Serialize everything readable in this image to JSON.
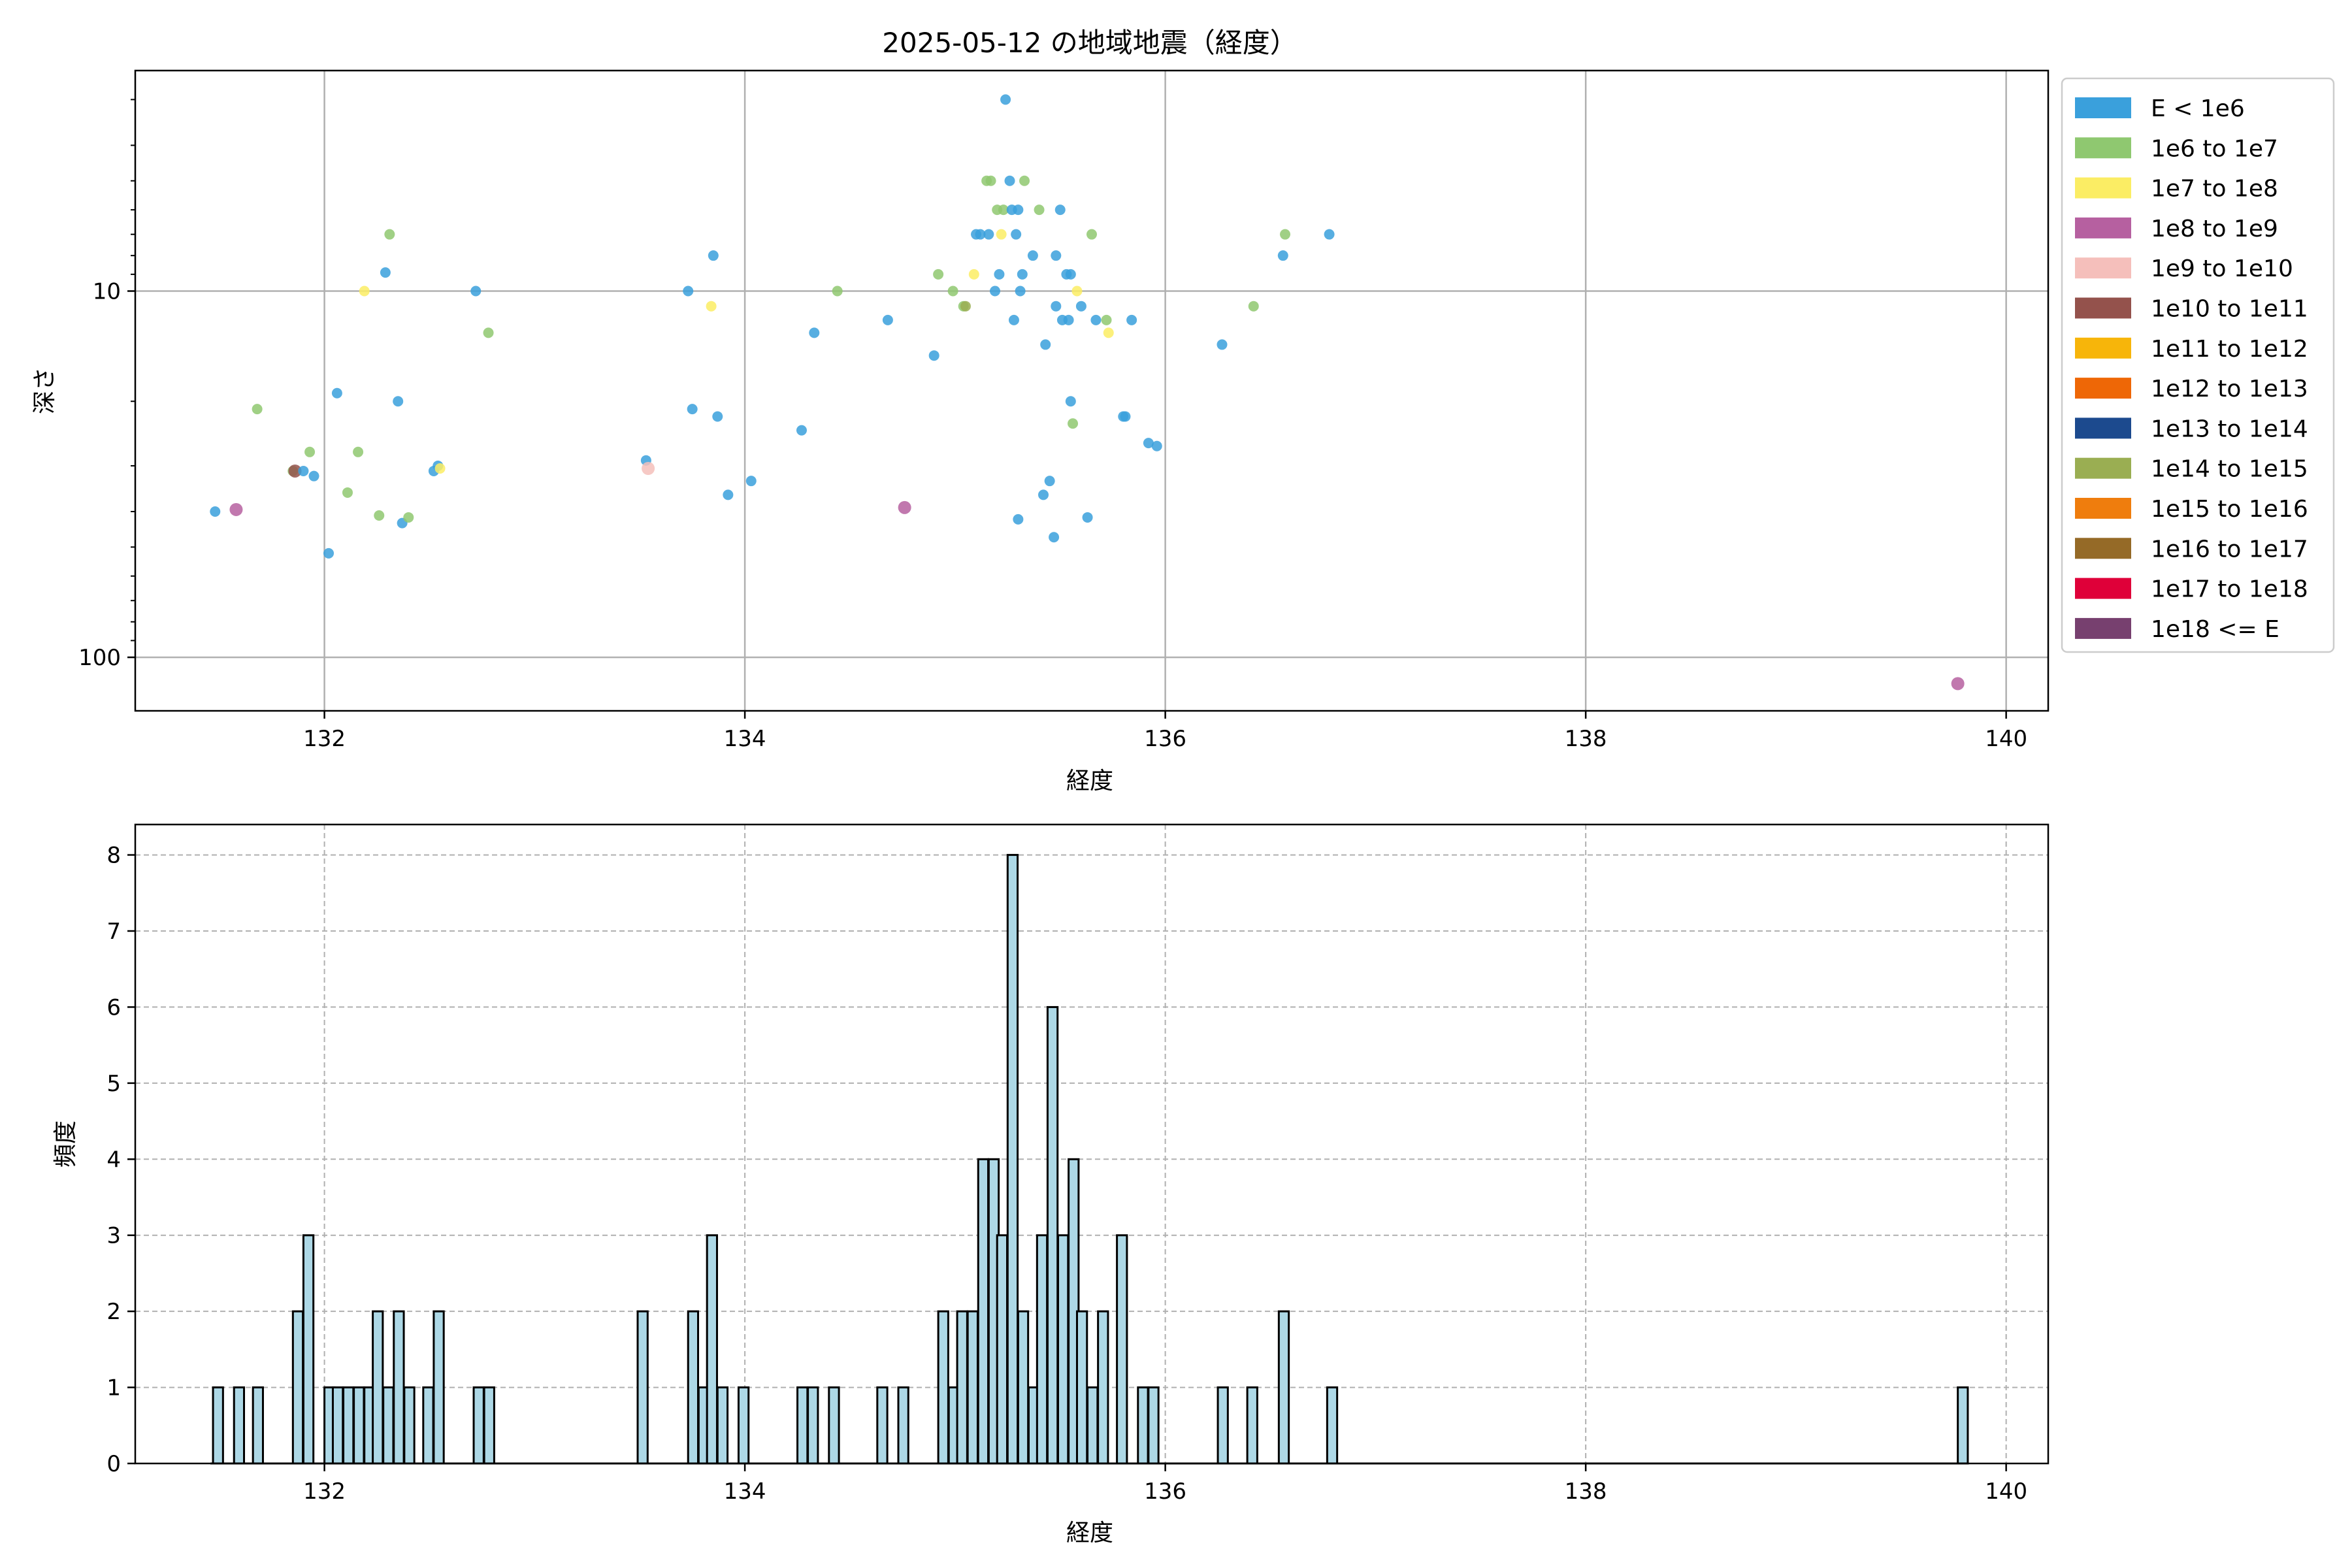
{
  "chart_data": [
    {
      "type": "scatter",
      "title": "2025-05-12 の地域地震（経度）",
      "xlabel": "経度",
      "ylabel": "深さ",
      "xlim": [
        131.1,
        140.2
      ],
      "ylim": [
        140,
        2.5
      ],
      "yscale": "log",
      "y_inverted": true,
      "grid": true,
      "xticks": [
        132,
        134,
        136,
        138,
        140
      ],
      "xtick_labels": [
        "132",
        "134",
        "136",
        "138",
        "140"
      ],
      "yticks": [
        10,
        100
      ],
      "ytick_labels": [
        "10",
        "100"
      ],
      "legend_position": "outside-right",
      "legend": [
        {
          "label": "E < 1e6",
          "color": "#3aa0dc"
        },
        {
          "label": "1e6 to 1e7",
          "color": "#8fc870"
        },
        {
          "label": "1e7 to 1e8",
          "color": "#fbed64"
        },
        {
          "label": "1e8 to 1e9",
          "color": "#b660a0"
        },
        {
          "label": "1e9 to 1e10",
          "color": "#f5bfbb"
        },
        {
          "label": "1e10 to 1e11",
          "color": "#94524c"
        },
        {
          "label": "1e11 to 1e12",
          "color": "#f7b50a"
        },
        {
          "label": "1e12 to 1e13",
          "color": "#ee6706"
        },
        {
          "label": "1e13 to 1e14",
          "color": "#1c4a8e"
        },
        {
          "label": "1e14 to 1e15",
          "color": "#9aae52"
        },
        {
          "label": "1e15 to 1e16",
          "color": "#ef7d0d"
        },
        {
          "label": "1e16 to 1e17",
          "color": "#956a27"
        },
        {
          "label": "1e17 to 1e18",
          "color": "#df0039"
        },
        {
          "label": "1e18 <= E",
          "color": "#77406f"
        }
      ],
      "points": [
        {
          "x": 131.48,
          "y": 40,
          "c": 0
        },
        {
          "x": 131.58,
          "y": 39.5,
          "c": 3
        },
        {
          "x": 131.68,
          "y": 21,
          "c": 1
        },
        {
          "x": 131.85,
          "y": 31,
          "c": 1
        },
        {
          "x": 131.86,
          "y": 31,
          "c": 5
        },
        {
          "x": 131.9,
          "y": 31,
          "c": 0
        },
        {
          "x": 131.93,
          "y": 27.5,
          "c": 1
        },
        {
          "x": 131.95,
          "y": 32,
          "c": 0
        },
        {
          "x": 132.02,
          "y": 52,
          "c": 0
        },
        {
          "x": 132.06,
          "y": 19,
          "c": 0
        },
        {
          "x": 132.11,
          "y": 35.5,
          "c": 1
        },
        {
          "x": 132.16,
          "y": 27.5,
          "c": 1
        },
        {
          "x": 132.19,
          "y": 10,
          "c": 2
        },
        {
          "x": 132.26,
          "y": 41,
          "c": 1
        },
        {
          "x": 132.29,
          "y": 8.9,
          "c": 0
        },
        {
          "x": 132.31,
          "y": 7,
          "c": 1
        },
        {
          "x": 132.35,
          "y": 20,
          "c": 0
        },
        {
          "x": 132.37,
          "y": 43,
          "c": 0
        },
        {
          "x": 132.4,
          "y": 41.5,
          "c": 1
        },
        {
          "x": 132.52,
          "y": 31,
          "c": 0
        },
        {
          "x": 132.54,
          "y": 30,
          "c": 0
        },
        {
          "x": 132.55,
          "y": 30.5,
          "c": 2
        },
        {
          "x": 132.72,
          "y": 10,
          "c": 0
        },
        {
          "x": 132.78,
          "y": 13,
          "c": 1
        },
        {
          "x": 133.53,
          "y": 29,
          "c": 0
        },
        {
          "x": 133.54,
          "y": 30.5,
          "c": 4
        },
        {
          "x": 133.73,
          "y": 10,
          "c": 0
        },
        {
          "x": 133.75,
          "y": 21,
          "c": 0
        },
        {
          "x": 133.84,
          "y": 11,
          "c": 2
        },
        {
          "x": 133.85,
          "y": 8,
          "c": 0
        },
        {
          "x": 133.87,
          "y": 22,
          "c": 0
        },
        {
          "x": 133.92,
          "y": 36,
          "c": 0
        },
        {
          "x": 134.03,
          "y": 33,
          "c": 0
        },
        {
          "x": 134.27,
          "y": 24,
          "c": 0
        },
        {
          "x": 134.33,
          "y": 13,
          "c": 0
        },
        {
          "x": 134.44,
          "y": 10,
          "c": 1
        },
        {
          "x": 134.68,
          "y": 12,
          "c": 0
        },
        {
          "x": 134.76,
          "y": 39,
          "c": 3
        },
        {
          "x": 134.9,
          "y": 15,
          "c": 0
        },
        {
          "x": 134.92,
          "y": 9,
          "c": 1
        },
        {
          "x": 134.99,
          "y": 10,
          "c": 1
        },
        {
          "x": 135.04,
          "y": 11,
          "c": 1
        },
        {
          "x": 135.05,
          "y": 11,
          "c": 9
        },
        {
          "x": 135.09,
          "y": 9,
          "c": 2
        },
        {
          "x": 135.1,
          "y": 7,
          "c": 0
        },
        {
          "x": 135.12,
          "y": 7,
          "c": 0
        },
        {
          "x": 135.15,
          "y": 5,
          "c": 1
        },
        {
          "x": 135.17,
          "y": 5,
          "c": 1
        },
        {
          "x": 135.16,
          "y": 7,
          "c": 0
        },
        {
          "x": 135.19,
          "y": 10,
          "c": 0
        },
        {
          "x": 135.2,
          "y": 6,
          "c": 1
        },
        {
          "x": 135.21,
          "y": 9,
          "c": 0
        },
        {
          "x": 135.22,
          "y": 7,
          "c": 2
        },
        {
          "x": 135.23,
          "y": 6,
          "c": 1
        },
        {
          "x": 135.24,
          "y": 3,
          "c": 0
        },
        {
          "x": 135.26,
          "y": 5,
          "c": 0
        },
        {
          "x": 135.27,
          "y": 6,
          "c": 0
        },
        {
          "x": 135.28,
          "y": 12,
          "c": 0
        },
        {
          "x": 135.29,
          "y": 7,
          "c": 0
        },
        {
          "x": 135.3,
          "y": 6,
          "c": 0
        },
        {
          "x": 135.31,
          "y": 10,
          "c": 0
        },
        {
          "x": 135.32,
          "y": 9,
          "c": 0
        },
        {
          "x": 135.33,
          "y": 5,
          "c": 1
        },
        {
          "x": 135.3,
          "y": 42,
          "c": 0
        },
        {
          "x": 135.37,
          "y": 8,
          "c": 0
        },
        {
          "x": 135.4,
          "y": 6,
          "c": 1
        },
        {
          "x": 135.42,
          "y": 36,
          "c": 0
        },
        {
          "x": 135.43,
          "y": 14,
          "c": 0
        },
        {
          "x": 135.45,
          "y": 33,
          "c": 0
        },
        {
          "x": 135.47,
          "y": 47,
          "c": 0
        },
        {
          "x": 135.48,
          "y": 8,
          "c": 0
        },
        {
          "x": 135.48,
          "y": 11,
          "c": 0
        },
        {
          "x": 135.5,
          "y": 6,
          "c": 0
        },
        {
          "x": 135.51,
          "y": 12,
          "c": 0
        },
        {
          "x": 135.53,
          "y": 9,
          "c": 0
        },
        {
          "x": 135.54,
          "y": 12,
          "c": 0
        },
        {
          "x": 135.55,
          "y": 9,
          "c": 0
        },
        {
          "x": 135.55,
          "y": 20,
          "c": 0
        },
        {
          "x": 135.56,
          "y": 23,
          "c": 1
        },
        {
          "x": 135.58,
          "y": 10,
          "c": 2
        },
        {
          "x": 135.6,
          "y": 11,
          "c": 0
        },
        {
          "x": 135.63,
          "y": 41.5,
          "c": 0
        },
        {
          "x": 135.65,
          "y": 7,
          "c": 1
        },
        {
          "x": 135.67,
          "y": 12,
          "c": 0
        },
        {
          "x": 135.72,
          "y": 12,
          "c": 1
        },
        {
          "x": 135.73,
          "y": 13,
          "c": 2
        },
        {
          "x": 135.8,
          "y": 22,
          "c": 0
        },
        {
          "x": 135.81,
          "y": 22,
          "c": 0
        },
        {
          "x": 135.84,
          "y": 12,
          "c": 0
        },
        {
          "x": 135.92,
          "y": 26,
          "c": 0
        },
        {
          "x": 135.96,
          "y": 26.5,
          "c": 0
        },
        {
          "x": 136.27,
          "y": 14,
          "c": 0
        },
        {
          "x": 136.42,
          "y": 11,
          "c": 1
        },
        {
          "x": 136.56,
          "y": 8,
          "c": 0
        },
        {
          "x": 136.57,
          "y": 7,
          "c": 1
        },
        {
          "x": 136.78,
          "y": 7,
          "c": 0
        },
        {
          "x": 139.77,
          "y": 118,
          "c": 3
        }
      ]
    },
    {
      "type": "bar",
      "title": "",
      "xlabel": "経度",
      "ylabel": "頻度",
      "xlim": [
        131.1,
        140.2
      ],
      "ylim": [
        0,
        8.4
      ],
      "grid": true,
      "grid_style": "dashed",
      "xticks": [
        132,
        134,
        136,
        138,
        140
      ],
      "xtick_labels": [
        "132",
        "134",
        "136",
        "138",
        "140"
      ],
      "yticks": [
        0,
        1,
        2,
        3,
        4,
        5,
        6,
        7,
        8
      ],
      "ytick_labels": [
        "0",
        "1",
        "2",
        "3",
        "4",
        "5",
        "6",
        "7",
        "8"
      ],
      "bar_color": "#add8e6",
      "edge_color": "#000000",
      "bin_width": 0.0475,
      "bins": [
        {
          "x": 131.47,
          "count": 1
        },
        {
          "x": 131.57,
          "count": 1
        },
        {
          "x": 131.66,
          "count": 1
        },
        {
          "x": 131.85,
          "count": 2
        },
        {
          "x": 131.9,
          "count": 3
        },
        {
          "x": 132.0,
          "count": 1
        },
        {
          "x": 132.04,
          "count": 1
        },
        {
          "x": 132.09,
          "count": 1
        },
        {
          "x": 132.14,
          "count": 1
        },
        {
          "x": 132.19,
          "count": 1
        },
        {
          "x": 132.23,
          "count": 2
        },
        {
          "x": 132.28,
          "count": 1
        },
        {
          "x": 132.33,
          "count": 2
        },
        {
          "x": 132.38,
          "count": 1
        },
        {
          "x": 132.47,
          "count": 1
        },
        {
          "x": 132.52,
          "count": 2
        },
        {
          "x": 132.71,
          "count": 1
        },
        {
          "x": 132.76,
          "count": 1
        },
        {
          "x": 133.49,
          "count": 2
        },
        {
          "x": 133.73,
          "count": 2
        },
        {
          "x": 133.78,
          "count": 1
        },
        {
          "x": 133.82,
          "count": 3
        },
        {
          "x": 133.87,
          "count": 1
        },
        {
          "x": 133.97,
          "count": 1
        },
        {
          "x": 134.25,
          "count": 1
        },
        {
          "x": 134.3,
          "count": 1
        },
        {
          "x": 134.4,
          "count": 1
        },
        {
          "x": 134.63,
          "count": 1
        },
        {
          "x": 134.73,
          "count": 1
        },
        {
          "x": 134.92,
          "count": 2
        },
        {
          "x": 134.97,
          "count": 1
        },
        {
          "x": 135.01,
          "count": 2
        },
        {
          "x": 135.06,
          "count": 2
        },
        {
          "x": 135.11,
          "count": 4
        },
        {
          "x": 135.16,
          "count": 4
        },
        {
          "x": 135.2,
          "count": 3
        },
        {
          "x": 135.25,
          "count": 8
        },
        {
          "x": 135.3,
          "count": 2
        },
        {
          "x": 135.35,
          "count": 1
        },
        {
          "x": 135.39,
          "count": 3
        },
        {
          "x": 135.44,
          "count": 6
        },
        {
          "x": 135.49,
          "count": 3
        },
        {
          "x": 135.54,
          "count": 4
        },
        {
          "x": 135.58,
          "count": 2
        },
        {
          "x": 135.63,
          "count": 1
        },
        {
          "x": 135.68,
          "count": 2
        },
        {
          "x": 135.77,
          "count": 3
        },
        {
          "x": 135.87,
          "count": 1
        },
        {
          "x": 135.92,
          "count": 1
        },
        {
          "x": 136.25,
          "count": 1
        },
        {
          "x": 136.39,
          "count": 1
        },
        {
          "x": 136.54,
          "count": 2
        },
        {
          "x": 136.77,
          "count": 1
        },
        {
          "x": 139.77,
          "count": 1
        }
      ]
    }
  ]
}
